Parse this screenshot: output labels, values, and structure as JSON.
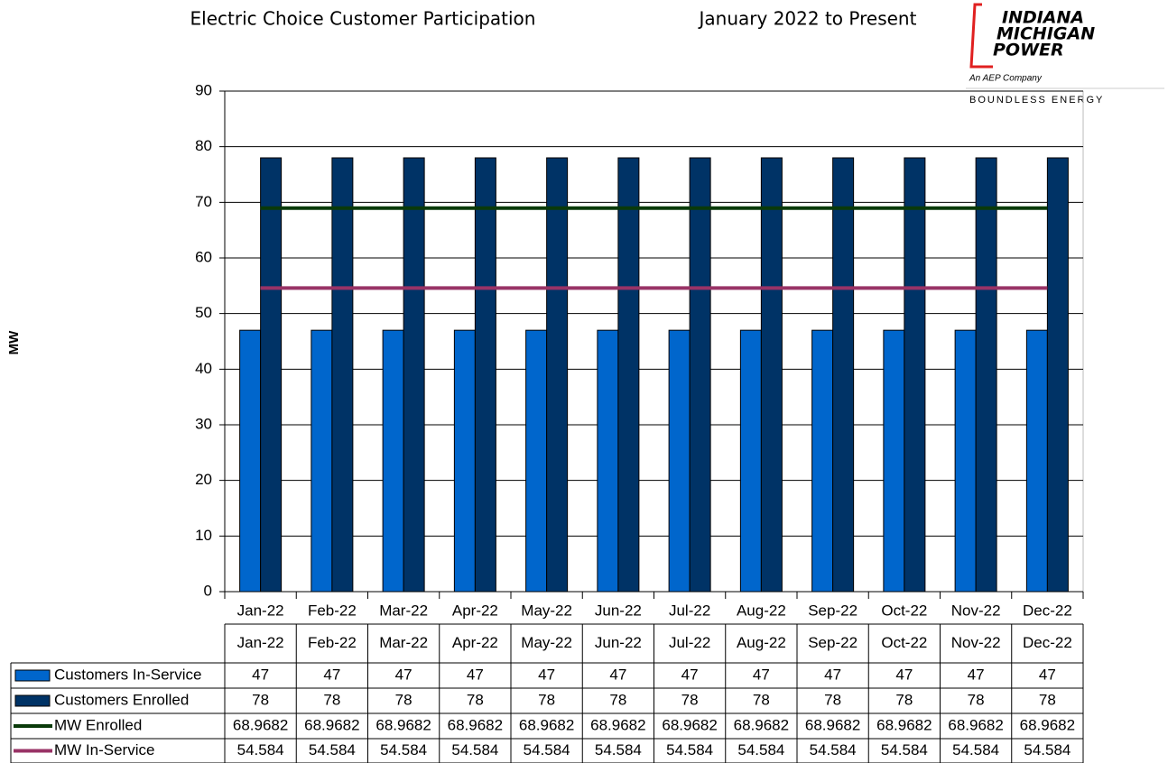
{
  "chart_data": {
    "type": "bar",
    "title": "Electric Choice Customer Participation",
    "subtitle": "January 2022 to Present",
    "logo": {
      "lines": [
        "INDIANA",
        "MICHIGAN",
        "POWER"
      ],
      "tagline": "An AEP Company",
      "slogan": "BOUNDLESS ENERGY"
    },
    "y_label": "MW",
    "categories": [
      "Jan-22",
      "Feb-22",
      "Mar-22",
      "Apr-22",
      "May-22",
      "Jun-22",
      "Jul-22",
      "Aug-22",
      "Sep-22",
      "Oct-22",
      "Nov-22",
      "Dec-22"
    ],
    "series": [
      {
        "name": "Customers In-Service",
        "type": "bar",
        "color": "#0066cc",
        "values": [
          47,
          47,
          47,
          47,
          47,
          47,
          47,
          47,
          47,
          47,
          47,
          47
        ]
      },
      {
        "name": "Customers Enrolled",
        "type": "bar",
        "color": "#003366",
        "values": [
          78,
          78,
          78,
          78,
          78,
          78,
          78,
          78,
          78,
          78,
          78,
          78
        ]
      },
      {
        "name": "MW Enrolled",
        "type": "line",
        "color": "#0a3a0a",
        "values": [
          68.9682,
          68.9682,
          68.9682,
          68.9682,
          68.9682,
          68.9682,
          68.9682,
          68.9682,
          68.9682,
          68.9682,
          68.9682,
          68.9682
        ]
      },
      {
        "name": "MW In-Service",
        "type": "line",
        "color": "#993366",
        "values": [
          54.584,
          54.584,
          54.584,
          54.584,
          54.584,
          54.584,
          54.584,
          54.584,
          54.584,
          54.584,
          54.584,
          54.584
        ]
      }
    ],
    "ylim": [
      0,
      90
    ],
    "yticks": [
      0,
      10,
      20,
      30,
      40,
      50,
      60,
      70,
      80,
      90
    ],
    "grid": true
  }
}
